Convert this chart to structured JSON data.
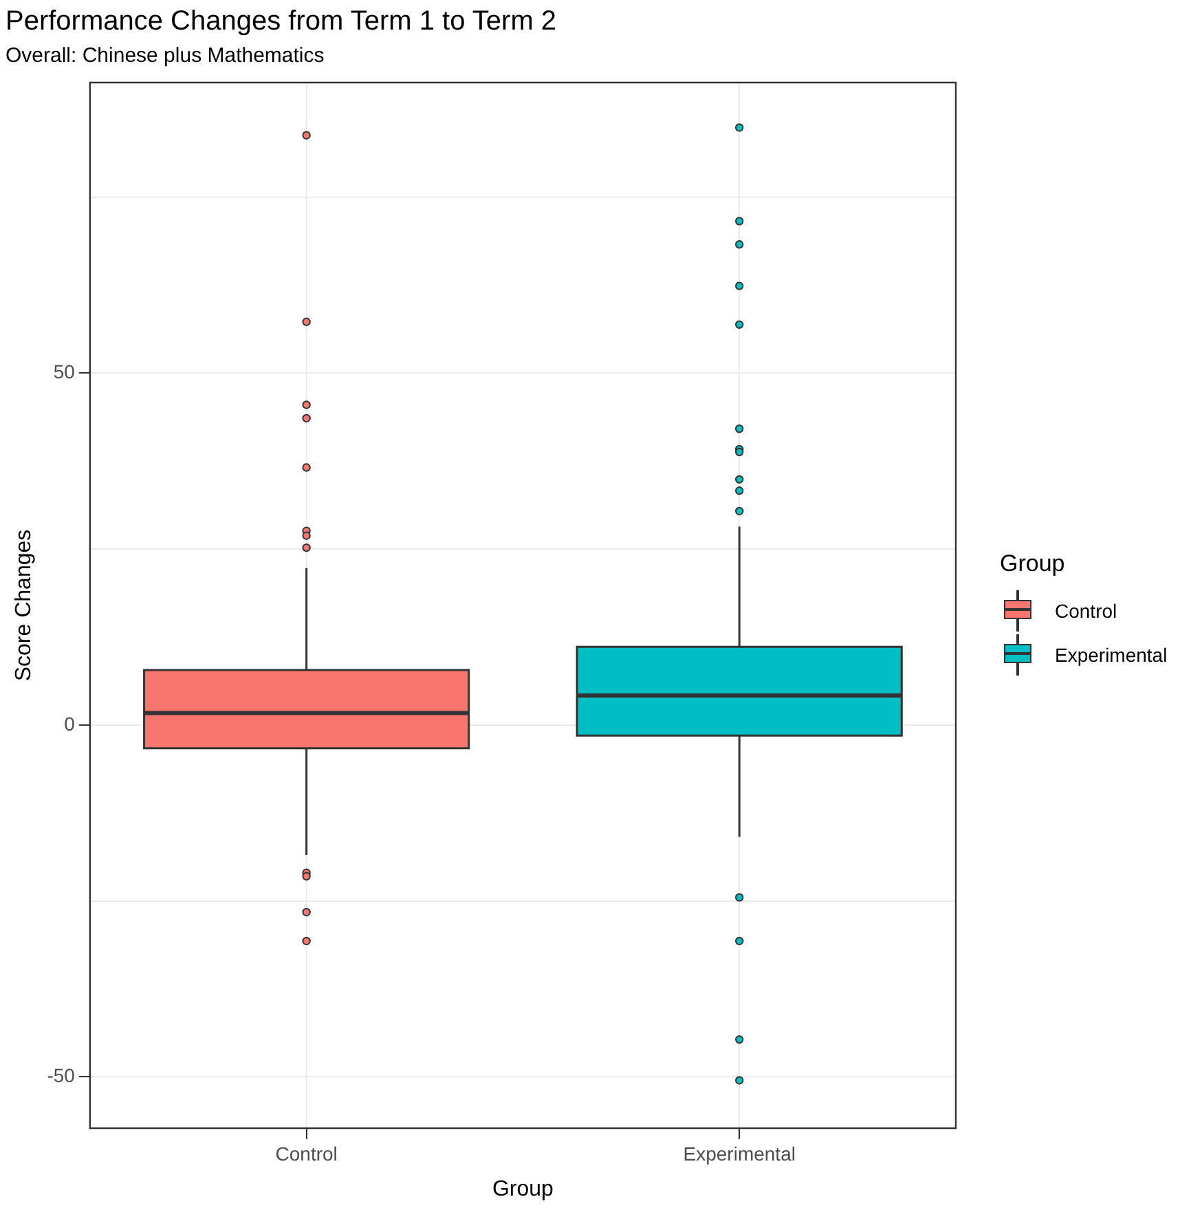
{
  "chart_data": {
    "type": "box",
    "title": "Performance Changes from Term 1 to Term 2",
    "subtitle": "Overall: Chinese plus Mathematics",
    "xlabel": "Group",
    "ylabel": "Score Changes",
    "legend_title": "Group",
    "categories": [
      "Control",
      "Experimental"
    ],
    "series": [
      {
        "name": "Control",
        "color": "#f8766d",
        "boxes": [
          {
            "low": -18.5,
            "q1": -3.3,
            "median": 1.7,
            "q3": 7.8,
            "high": 22.3,
            "outliers": [
              83.8,
              57.3,
              45.5,
              43.6,
              36.6,
              27.6,
              26.9,
              25.2,
              -21.0,
              -21.5,
              -26.6,
              -30.7
            ]
          },
          null
        ]
      },
      {
        "name": "Experimental",
        "color": "#00bfc4",
        "boxes": [
          null,
          {
            "low": -15.9,
            "q1": -1.5,
            "median": 4.2,
            "q3": 11.1,
            "high": 28.2,
            "outliers": [
              84.9,
              71.6,
              68.3,
              62.4,
              56.9,
              42.1,
              39.2,
              38.8,
              34.9,
              33.3,
              30.4,
              -24.5,
              -30.7,
              -44.7,
              -50.5
            ]
          }
        ]
      }
    ],
    "ylim": [
      -57.3,
      91.3
    ],
    "yticks": [
      {
        "value": -50,
        "label": "-50"
      },
      {
        "value": -25,
        "label": null
      },
      0,
      {
        "value": 25,
        "label": null
      },
      50,
      {
        "value": 75,
        "label": null
      }
    ],
    "grid": true,
    "legend": "right"
  }
}
